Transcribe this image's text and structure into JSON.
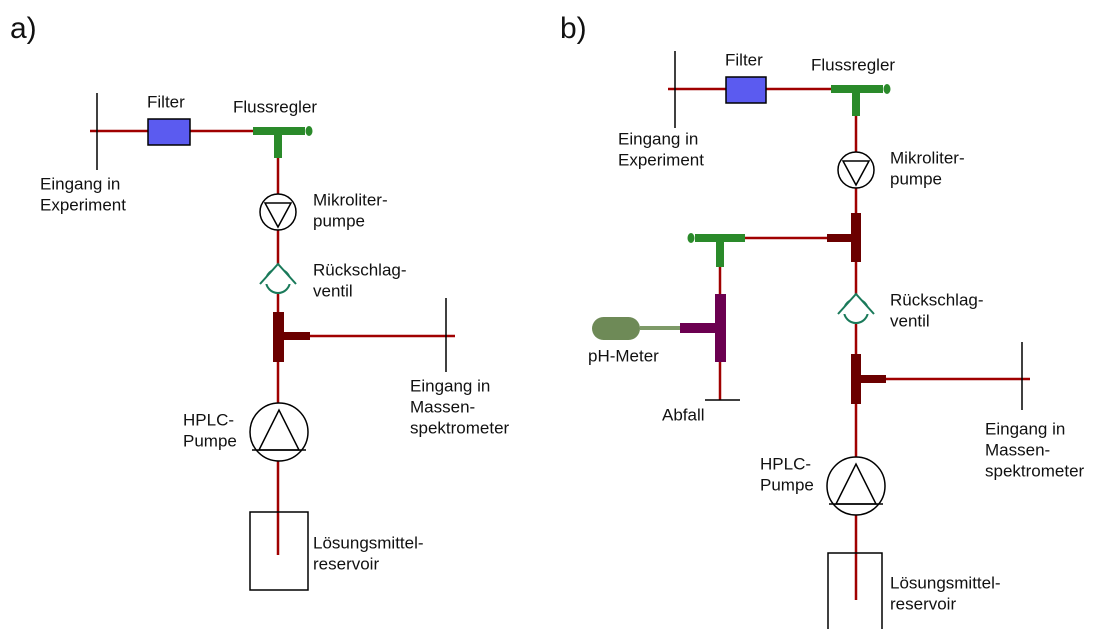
{
  "panels": [
    {
      "label": "a)",
      "filter": "Filter",
      "flow_regulator": "Flussregler",
      "inlet_experiment": [
        "Eingang in",
        "Experiment"
      ],
      "micro_pump": [
        "Mikroliter-",
        "pumpe"
      ],
      "check_valve": [
        "Rückschlag-",
        "ventil"
      ],
      "inlet_ms": [
        "Eingang in",
        "Massen-",
        "spektrometer"
      ],
      "hplc_pump": [
        "HPLC-",
        "Pumpe"
      ],
      "reservoir": [
        "Lösungsmittel-",
        "reservoir"
      ]
    },
    {
      "label": "b)",
      "filter": "Filter",
      "flow_regulator": "Flussregler",
      "inlet_experiment": [
        "Eingang in",
        "Experiment"
      ],
      "micro_pump": [
        "Mikroliter-",
        "pumpe"
      ],
      "check_valve": [
        "Rückschlag-",
        "ventil"
      ],
      "inlet_ms": [
        "Eingang in",
        "Massen-",
        "spektrometer"
      ],
      "hplc_pump": [
        "HPLC-",
        "Pumpe"
      ],
      "reservoir": [
        "Lösungsmittel-",
        "reservoir"
      ],
      "ph_meter": "pH-Meter",
      "waste": "Abfall"
    }
  ]
}
